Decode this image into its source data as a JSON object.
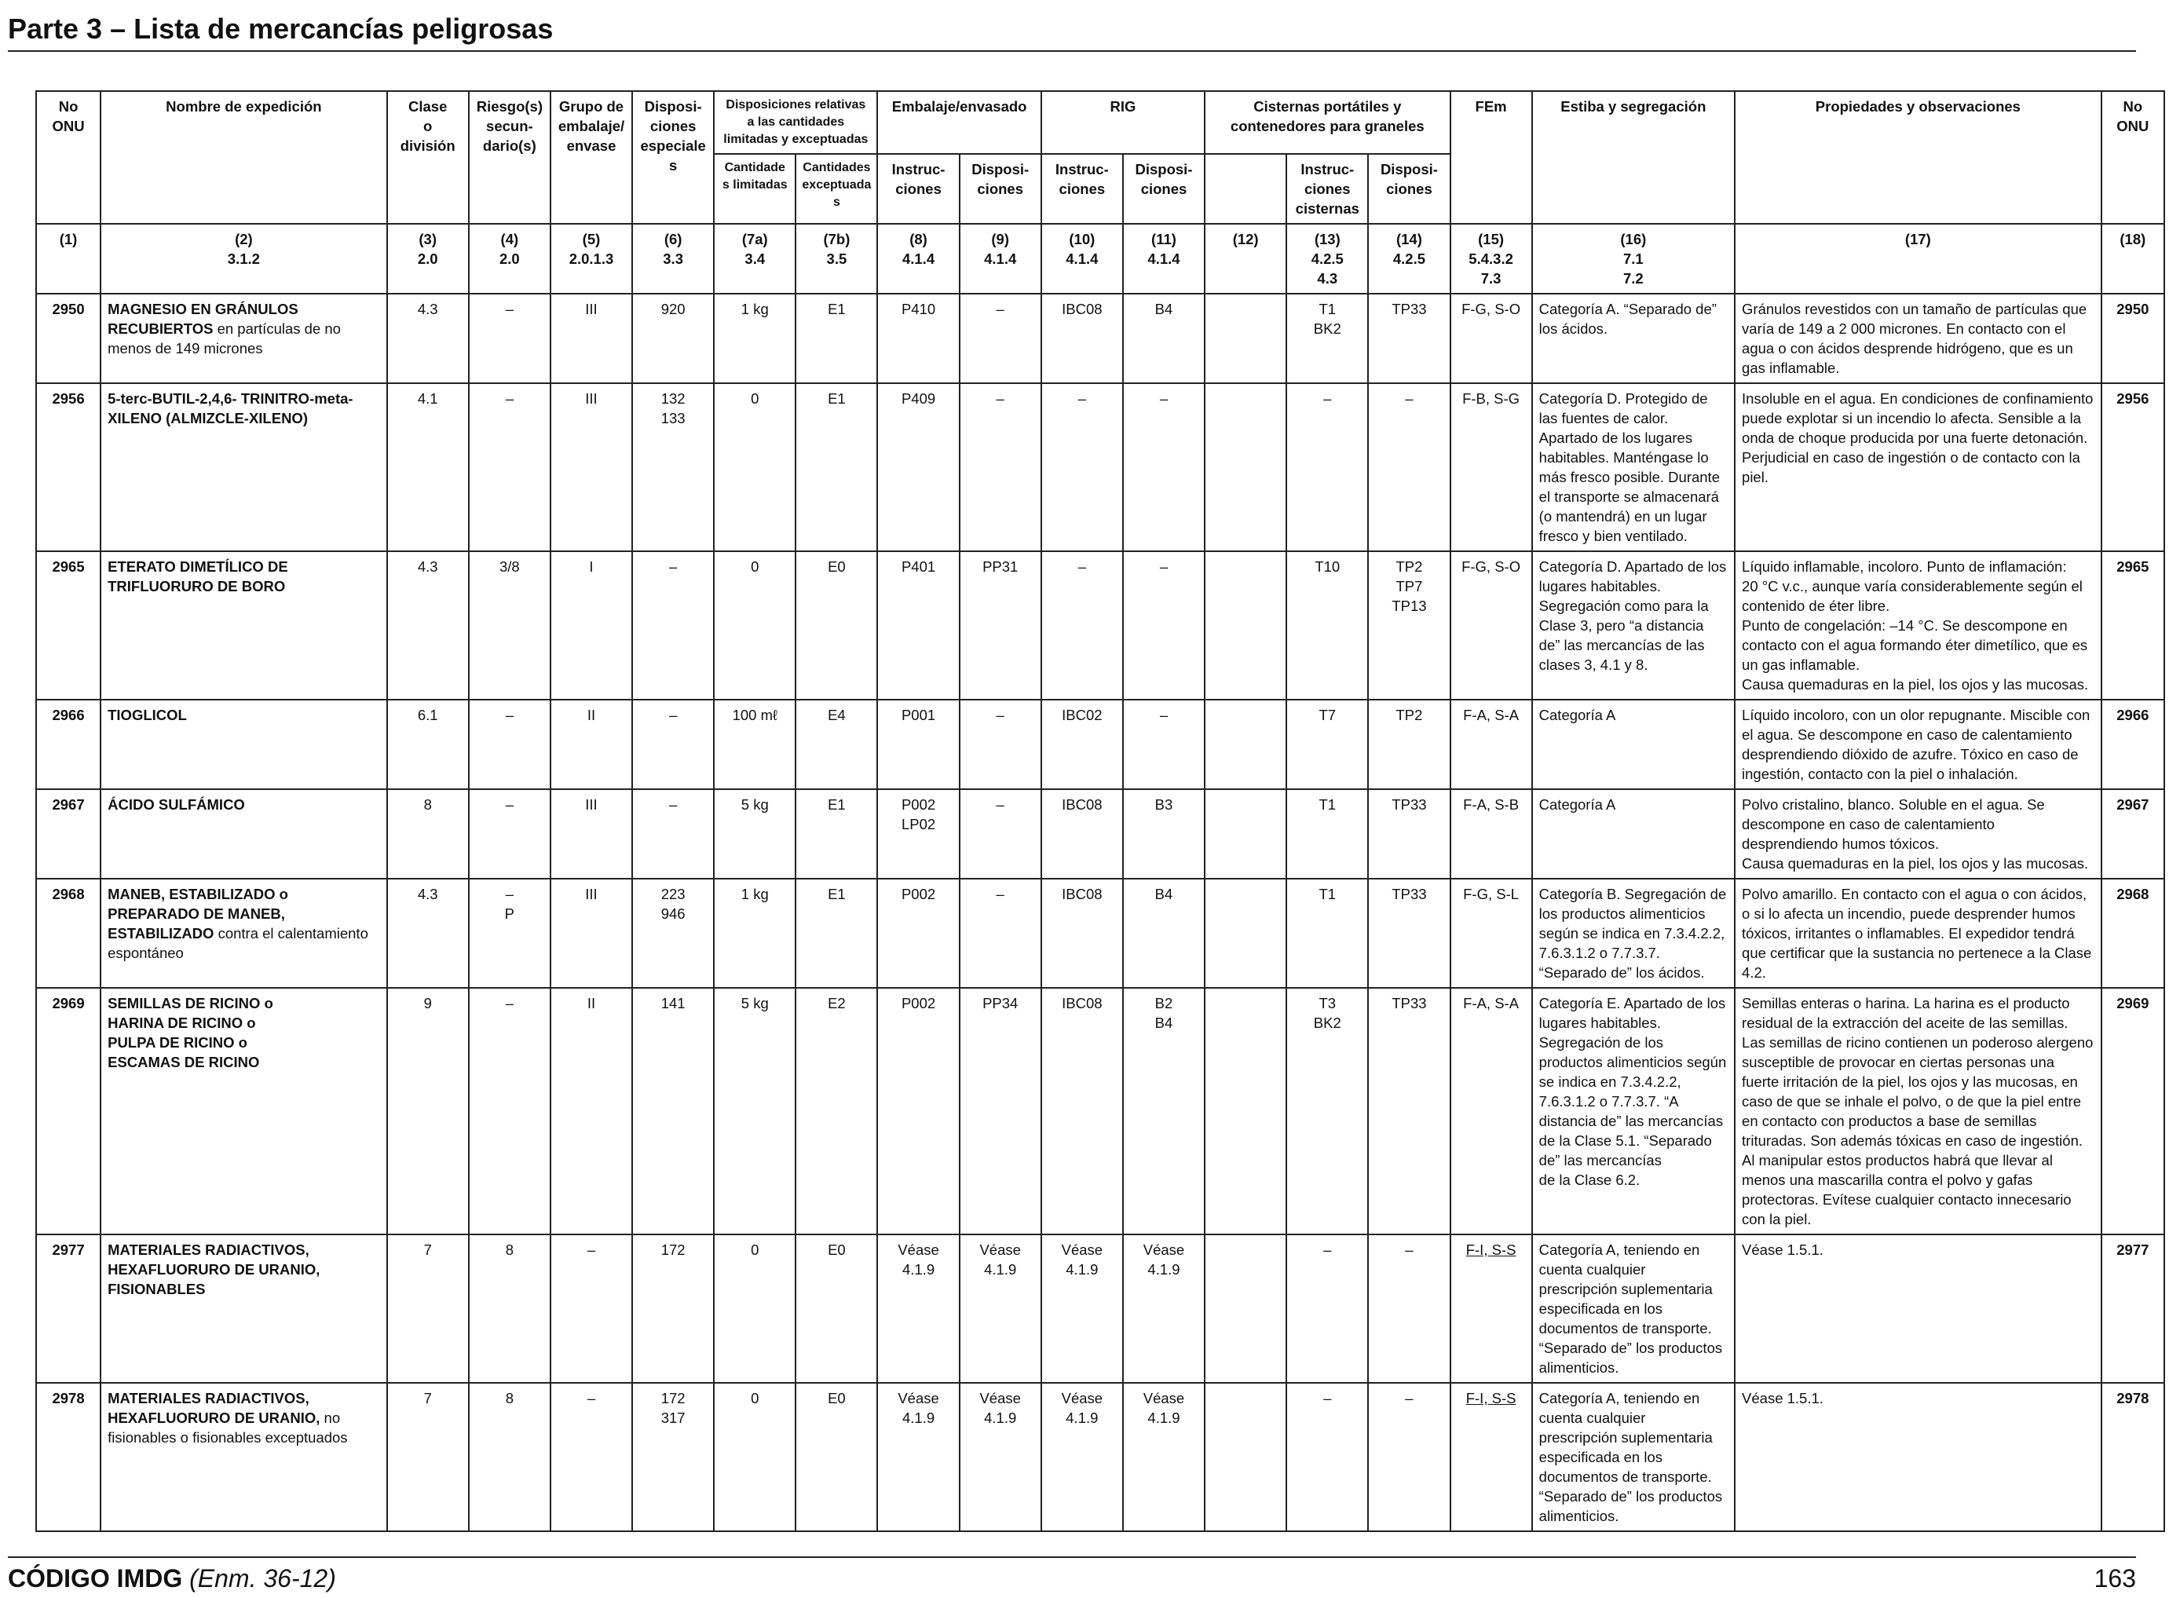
{
  "page_title": "Parte 3 – Lista de mercancías peligrosas",
  "headers": {
    "no_onu": "No\nONU",
    "nombre": "Nombre de expedición",
    "clase": "Clase\no\ndivisión",
    "riesgo": "Riesgo(s)\nsecun-\ndario(s)",
    "grupo": "Grupo de\nembalaje/\nenvase",
    "disposiciones_especiales": "Disposi-\nciones\nespeciales",
    "cantidades": "Disposiciones relativas\na las cantidades\nlimitadas y exceptuadas",
    "embalaje": "Embalaje/envasado",
    "rig": "RIG",
    "cisternas": "Cisternas portátiles y\ncontenedores para graneles",
    "fem": "FEm",
    "estiba": "Estiba y segregación",
    "propiedades": "Propiedades y observaciones",
    "no_onu_right": "No\nONU",
    "cant_limitadas": "Cantidade\ns limitadas",
    "cant_exceptuadas": "Cantidades\nexceptuadas",
    "instrucciones_8": "Instruc-\nciones",
    "disposiciones_9": "Disposi-\nciones",
    "instrucciones_10": "Instruc-\nciones",
    "disposiciones_11": "Disposi-\nciones",
    "instrucciones_13": "Instruc-\nciones\ncisternas",
    "disposiciones_14": "Disposi-\nciones"
  },
  "column_refs": [
    "(1)",
    "(2)\n3.1.2",
    "(3)\n2.0",
    "(4)\n2.0",
    "(5)\n2.0.1.3",
    "(6)\n3.3",
    "(7a)\n3.4",
    "(7b)\n3.5",
    "(8)\n4.1.4",
    "(9)\n4.1.4",
    "(10)\n4.1.4",
    "(11)\n4.1.4",
    "(12)",
    "(13)\n4.2.5\n4.3",
    "(14)\n4.2.5",
    "(15)\n5.4.3.2\n7.3",
    "(16)\n7.1\n7.2",
    "(17)",
    "(18)"
  ],
  "rows": [
    {
      "onu": "2950",
      "name_bold": "MAGNESIO EN GRÁNULOS RECUBIERTOS",
      "name_plain": " en partículas de no menos de 149 micrones",
      "clase": "4.3",
      "riesgo": "–",
      "grupo": "III",
      "disp_esp": "920",
      "cant_lim": "1 kg",
      "cant_exc": "E1",
      "emb_instr": "P410",
      "emb_disp": "–",
      "rig_instr": "IBC08",
      "rig_disp": "B4",
      "c12": "",
      "cist_instr": "T1\nBK2",
      "cist_disp": "TP33",
      "fem": "F-G, S-O",
      "estiba": "Categoría A. “Separado de” los ácidos.",
      "propiedades": "Gránulos revestidos con un tamaño de partículas que varía de 149 a 2 000 micrones. En contacto con el agua o con ácidos desprende hidrógeno, que es un gas inflamable.",
      "onu_right": "2950"
    },
    {
      "onu": "2956",
      "name_bold": "5-terc-BUTIL-2,4,6- TRINITRO-meta-XILENO (ALMIZCLE-XILENO)",
      "name_plain": "",
      "clase": "4.1",
      "riesgo": "–",
      "grupo": "III",
      "disp_esp": "132\n133",
      "cant_lim": "0",
      "cant_exc": "E1",
      "emb_instr": "P409",
      "emb_disp": "–",
      "rig_instr": "–",
      "rig_disp": "–",
      "c12": "",
      "cist_instr": "–",
      "cist_disp": "–",
      "fem": "F-B, S-G",
      "estiba": "Categoría D. Protegido de las fuentes de calor.  Apartado de los lugares habitables. Manténgase lo más fresco posible. Durante el transporte se almacenará (o mantendrá) en un lugar fresco y bien ventilado.",
      "propiedades": "Insoluble en el agua. En condiciones de confinamiento puede explotar si un incendio lo afecta. Sensible a la onda de choque producida por una fuerte detonación. Perjudicial en caso de ingestión o de contacto con la piel.",
      "onu_right": "2956"
    },
    {
      "onu": "2965",
      "name_bold": "ETERATO DIMETÍLICO DE TRIFLUORURO DE BORO",
      "name_plain": "",
      "clase": "4.3",
      "riesgo": "3/8",
      "grupo": "I",
      "disp_esp": "–",
      "cant_lim": "0",
      "cant_exc": "E0",
      "emb_instr": "P401",
      "emb_disp": "PP31",
      "rig_instr": "–",
      "rig_disp": "–",
      "c12": "",
      "cist_instr": "T10",
      "cist_disp": "TP2\nTP7\nTP13",
      "fem": "F-G, S-O",
      "estiba": "Categoría D. Apartado de los lugares habitables. Segregación como para la Clase 3, pero “a distancia de” las mercancías de las clases 3, 4.1 y 8.",
      "propiedades": "Líquido inflamable, incoloro. Punto de inflamación:\n20 °C v.c., aunque varía considerablemente según el contenido de éter libre.\nPunto de congelación: –14 °C. Se descompone en contacto con el agua formando éter dimetílico, que es un gas inflamable.\nCausa quemaduras en la piel, los ojos y las mucosas.",
      "onu_right": "2965"
    },
    {
      "onu": "2966",
      "name_bold": "TIOGLICOL",
      "name_plain": "",
      "clase": "6.1",
      "riesgo": "–",
      "grupo": "II",
      "disp_esp": "–",
      "cant_lim": "100 mℓ",
      "cant_exc": "E4",
      "emb_instr": "P001",
      "emb_disp": "–",
      "rig_instr": "IBC02",
      "rig_disp": "–",
      "c12": "",
      "cist_instr": "T7",
      "cist_disp": "TP2",
      "fem": "F-A, S-A",
      "estiba": "Categoría A",
      "propiedades": "Líquido incoloro, con un olor repugnante. Miscible con el agua. Se descompone en caso de calentamiento desprendiendo dióxido de azufre. Tóxico en caso de ingestión, contacto con la piel o inhalación.",
      "onu_right": "2966"
    },
    {
      "onu": "2967",
      "name_bold": "ÁCIDO SULFÁMICO",
      "name_plain": "",
      "clase": "8",
      "riesgo": "–",
      "grupo": "III",
      "disp_esp": "–",
      "cant_lim": "5 kg",
      "cant_exc": "E1",
      "emb_instr": "P002\nLP02",
      "emb_disp": "–",
      "rig_instr": "IBC08",
      "rig_disp": "B3",
      "c12": "",
      "cist_instr": "T1",
      "cist_disp": "TP33",
      "fem": "F-A, S-B",
      "estiba": "Categoría A",
      "propiedades": "Polvo cristalino, blanco. Soluble en el agua. Se descompone en caso de calentamiento desprendiendo humos tóxicos.\nCausa quemaduras en la piel, los ojos y las mucosas.",
      "onu_right": "2967"
    },
    {
      "onu": "2968",
      "name_bold": "MANEB, ESTABILIZADO o PREPARADO DE MANEB, ESTABILIZADO",
      "name_plain": " contra el calentamiento espontáneo",
      "clase": "4.3",
      "riesgo": "–\nP",
      "grupo": "III",
      "disp_esp": "223\n946",
      "cant_lim": "1 kg",
      "cant_exc": "E1",
      "emb_instr": "P002",
      "emb_disp": "–",
      "rig_instr": "IBC08",
      "rig_disp": "B4",
      "c12": "",
      "cist_instr": "T1",
      "cist_disp": "TP33",
      "fem": "F-G, S-L",
      "estiba": "Categoría B. Segregación de los productos alimenticios según se indica en 7.3.4.2.2, 7.6.3.1.2 o 7.7.3.7. “Separado de” los ácidos.",
      "propiedades": "Polvo amarillo. En contacto con el agua o con ácidos, o si lo afecta un incendio, puede desprender humos tóxicos, irritantes o inflamables. El expedidor tendrá que certificar que la sustancia no pertenece a la Clase 4.2.",
      "onu_right": "2968"
    },
    {
      "onu": "2969",
      "name_bold": "SEMILLAS DE RICINO o\nHARINA DE RICINO o\nPULPA DE RICINO o\nESCAMAS DE RICINO",
      "name_plain": "",
      "clase": "9",
      "riesgo": "–",
      "grupo": "II",
      "disp_esp": "141",
      "cant_lim": "5 kg",
      "cant_exc": "E2",
      "emb_instr": "P002",
      "emb_disp": "PP34",
      "rig_instr": "IBC08",
      "rig_disp": "B2\nB4",
      "c12": "",
      "cist_instr": "T3\nBK2",
      "cist_disp": "TP33",
      "fem": "F-A, S-A",
      "estiba": "Categoría E. Apartado de los lugares habitables. Segregación de los productos alimenticios según se indica en 7.3.4.2.2, 7.6.3.1.2 o 7.7.3.7. “A distancia de” las mercancías de la Clase 5.1. “Separado de” las mercancías\nde la Clase 6.2.",
      "propiedades": "Semillas enteras o harina. La harina es el producto residual de la extracción del aceite de las semillas. Las semillas de ricino contienen un poderoso alergeno susceptible de provocar en ciertas personas una fuerte irritación de la piel, los ojos y las mucosas, en caso de que se inhale el polvo, o de que la piel entre en contacto con productos a base de semillas trituradas. Son además tóxicas en caso de ingestión. Al manipular estos productos habrá que llevar al menos una mascarilla contra el polvo y gafas protectoras. Evítese cualquier contacto innecesario con la piel.",
      "onu_right": "2969"
    },
    {
      "onu": "2977",
      "name_bold": "MATERIALES RADIACTIVOS, HEXAFLUORURO DE URANIO, FISIONABLES",
      "name_plain": "",
      "clase": "7",
      "riesgo": "8",
      "grupo": "–",
      "disp_esp": "172",
      "cant_lim": "0",
      "cant_exc": "E0",
      "emb_instr": "Véase\n4.1.9",
      "emb_disp": "Véase\n4.1.9",
      "rig_instr": "Véase\n4.1.9",
      "rig_disp": "Véase\n4.1.9",
      "c12": "",
      "cist_instr": "–",
      "cist_disp": "–",
      "fem": "F-I, S-S",
      "estiba": "Categoría A, teniendo en cuenta cualquier prescripción suplementaria especificada en los documentos de transporte. “Separado de” los productos alimenticios.",
      "propiedades": "Véase 1.5.1.",
      "onu_right": "2977"
    },
    {
      "onu": "2978",
      "name_bold": "MATERIALES RADIACTIVOS, HEXAFLUORURO DE URANIO,",
      "name_plain": " no fisionables o fisionables exceptuados",
      "clase": "7",
      "riesgo": "8",
      "grupo": "–",
      "disp_esp": "172\n317",
      "cant_lim": "0",
      "cant_exc": "E0",
      "emb_instr": "Véase\n4.1.9",
      "emb_disp": "Véase\n4.1.9",
      "rig_instr": "Véase\n4.1.9",
      "rig_disp": "Véase\n4.1.9",
      "c12": "",
      "cist_instr": "–",
      "cist_disp": "–",
      "fem": "F-I, S-S",
      "estiba": "Categoría A, teniendo en cuenta cualquier prescripción suplementaria especificada en los documentos de transporte. “Separado de” los productos alimenticios.",
      "propiedades": "Véase 1.5.1.",
      "onu_right": "2978"
    }
  ],
  "footer": {
    "code": "CÓDIGO IMDG",
    "edition": " (Enm. 36-12)",
    "page_number": "163"
  }
}
